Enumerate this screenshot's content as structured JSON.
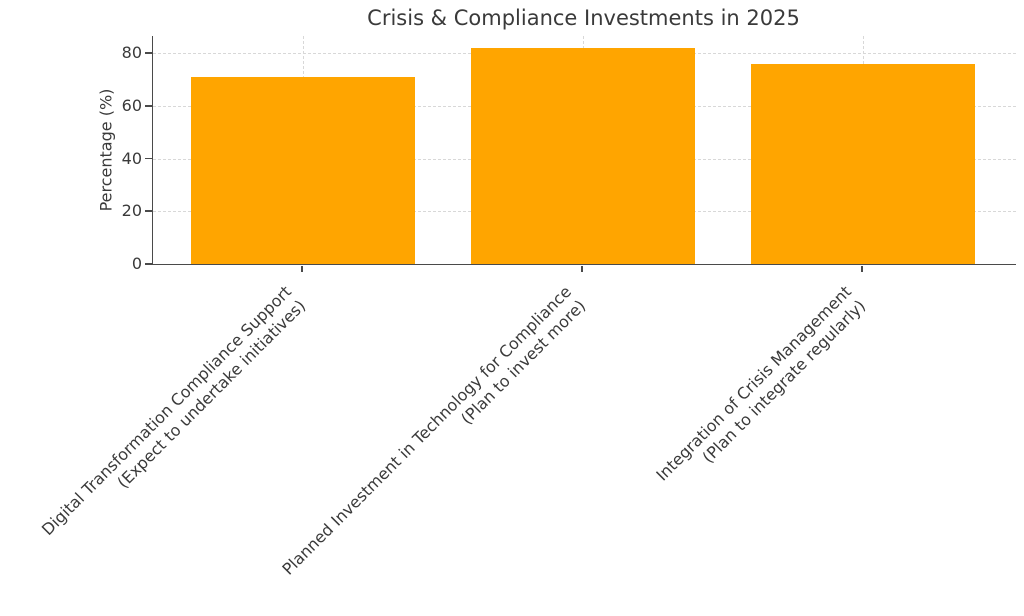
{
  "chart_data": {
    "type": "bar",
    "title": "Crisis & Compliance Investments in 2025",
    "xlabel": "",
    "ylabel": "Percentage (%)",
    "categories": [
      [
        "Digital Transformation Compliance Support",
        "(Expect to undertake initiatives)"
      ],
      [
        "Planned Investment in Technology for Compliance",
        "(Plan to invest more)"
      ],
      [
        "Integration of Crisis Management",
        "(Plan to integrate regularly)"
      ]
    ],
    "values": [
      71,
      82,
      76
    ],
    "yticks": [
      0,
      20,
      40,
      60,
      80
    ],
    "ylim": [
      0,
      86.6
    ],
    "bar_color": "#FFA500",
    "grid": {
      "horizontal": true,
      "vertical": true,
      "style": "dashed",
      "color": "#d8d8d8"
    },
    "legend_position": "none",
    "x_tick_label_rotation_deg": 45
  },
  "colors": {
    "background": "#ffffff",
    "bar": "#FFA500",
    "text": "#3a3a3a",
    "axis": "#4a4a4a",
    "grid": "#d8d8d8"
  }
}
